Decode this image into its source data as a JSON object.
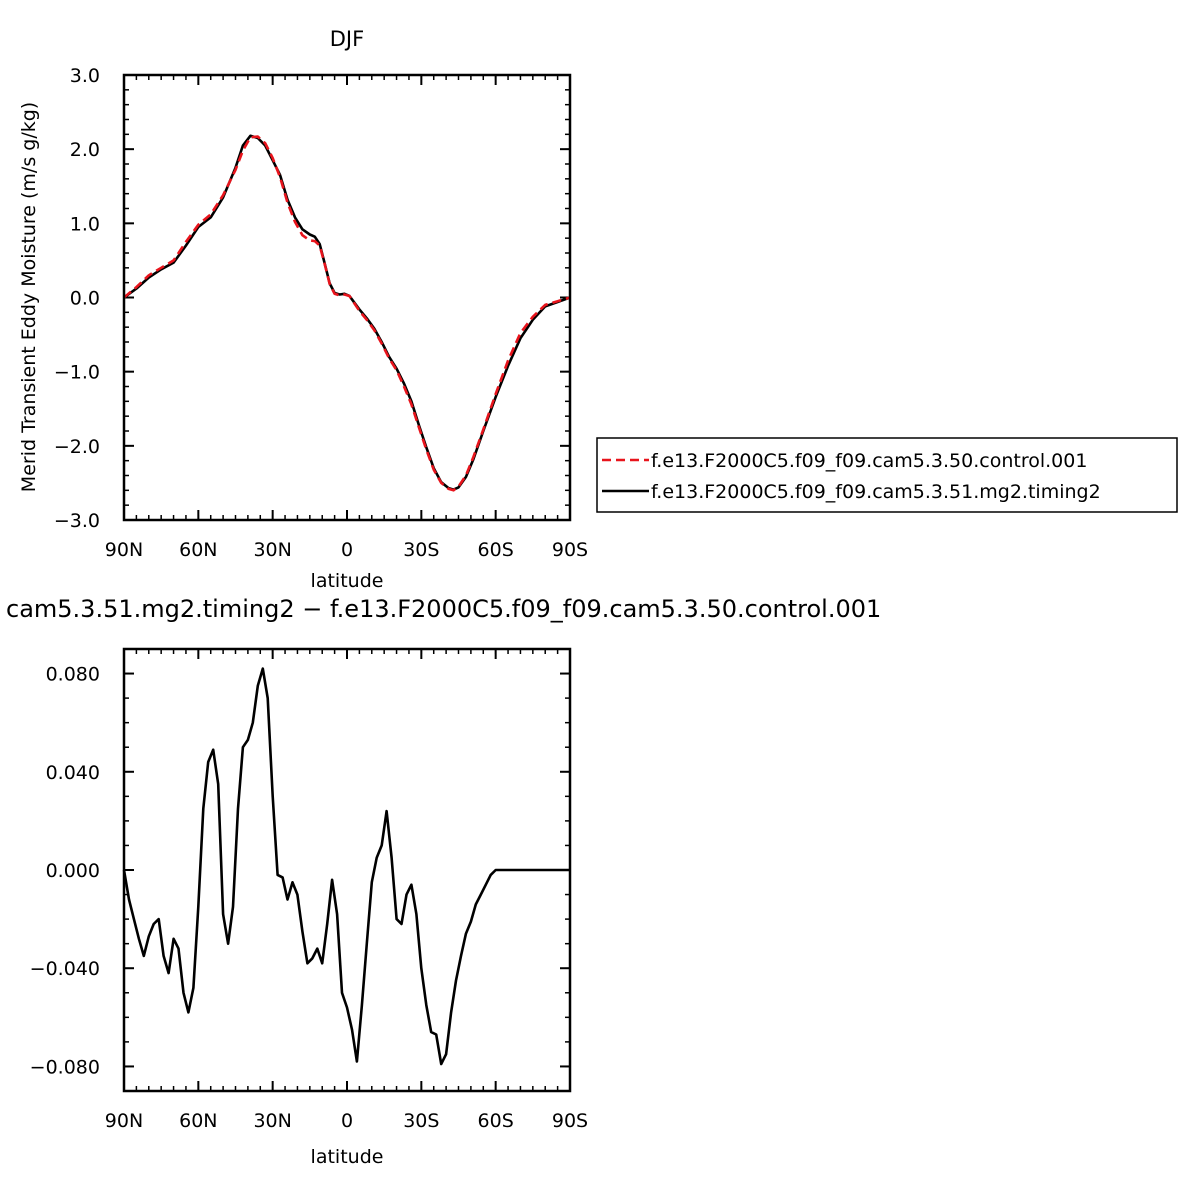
{
  "chart_data": [
    {
      "type": "line",
      "title": "DJF",
      "xlabel": "latitude",
      "ylabel": "Merid Transient Eddy Moisture (m/s g/kg)",
      "xlim": [
        90,
        -90
      ],
      "ylim": [
        -3.0,
        3.0
      ],
      "x_ticks": [
        90,
        60,
        30,
        0,
        -30,
        -60,
        -90
      ],
      "x_tick_labels": [
        "90N",
        "60N",
        "30N",
        "0",
        "30S",
        "60S",
        "90S"
      ],
      "y_ticks": [
        -3.0,
        -2.0,
        -1.0,
        0.0,
        1.0,
        2.0,
        3.0
      ],
      "y_tick_labels": [
        "−3.0",
        "−2.0",
        "−1.0",
        "0.0",
        "1.0",
        "2.0",
        "3.0"
      ],
      "legend_position": "right",
      "series": [
        {
          "name": "f.e13.F2000C5.f09_f09.cam5.3.50.control.001",
          "color": "#e8141c",
          "dash": "dashed",
          "x": [
            90,
            85,
            80,
            75,
            70,
            65,
            60,
            55,
            50,
            45,
            42,
            39,
            36,
            33,
            30,
            27,
            24,
            21,
            18,
            15,
            13,
            11,
            9,
            7,
            5,
            3,
            1,
            -1,
            -3,
            -5,
            -8,
            -11,
            -14,
            -17,
            -20,
            -23,
            -26,
            -29,
            -32,
            -35,
            -38,
            -41,
            -43,
            -45,
            -48,
            -51,
            -55,
            -60,
            -65,
            -70,
            -75,
            -80,
            -85,
            -90
          ],
          "y": [
            0.0,
            0.14,
            0.3,
            0.4,
            0.5,
            0.75,
            0.98,
            1.12,
            1.38,
            1.72,
            1.98,
            2.16,
            2.17,
            2.08,
            1.88,
            1.62,
            1.28,
            1.02,
            0.84,
            0.77,
            0.76,
            0.7,
            0.45,
            0.18,
            0.05,
            0.03,
            0.04,
            0.02,
            -0.08,
            -0.18,
            -0.3,
            -0.44,
            -0.62,
            -0.82,
            -0.98,
            -1.2,
            -1.44,
            -1.75,
            -2.05,
            -2.32,
            -2.5,
            -2.58,
            -2.6,
            -2.55,
            -2.4,
            -2.15,
            -1.78,
            -1.3,
            -0.85,
            -0.48,
            -0.26,
            -0.1,
            -0.05,
            0.0
          ]
        },
        {
          "name": "f.e13.F2000C5.f09_f09.cam5.3.51.mg2.timing2",
          "color": "#000000",
          "dash": "solid",
          "x": [
            90,
            85,
            80,
            75,
            70,
            65,
            60,
            55,
            50,
            45,
            42,
            39,
            36,
            33,
            30,
            27,
            24,
            21,
            18,
            15,
            13,
            11,
            9,
            7,
            5,
            3,
            1,
            -1,
            -3,
            -5,
            -8,
            -11,
            -14,
            -17,
            -20,
            -23,
            -26,
            -29,
            -32,
            -35,
            -38,
            -41,
            -43,
            -45,
            -48,
            -51,
            -55,
            -60,
            -65,
            -70,
            -75,
            -80,
            -85,
            -90
          ],
          "y": [
            0.0,
            0.12,
            0.27,
            0.38,
            0.47,
            0.7,
            0.95,
            1.08,
            1.35,
            1.75,
            2.05,
            2.18,
            2.15,
            2.05,
            1.85,
            1.65,
            1.32,
            1.08,
            0.92,
            0.85,
            0.82,
            0.72,
            0.46,
            0.19,
            0.06,
            0.04,
            0.05,
            0.02,
            -0.07,
            -0.16,
            -0.28,
            -0.42,
            -0.6,
            -0.8,
            -0.96,
            -1.16,
            -1.4,
            -1.72,
            -2.02,
            -2.3,
            -2.49,
            -2.57,
            -2.59,
            -2.56,
            -2.42,
            -2.18,
            -1.8,
            -1.34,
            -0.92,
            -0.55,
            -0.3,
            -0.12,
            -0.06,
            0.0
          ]
        }
      ]
    },
    {
      "type": "line",
      "title": "cam5.3.51.mg2.timing2 − f.e13.F2000C5.f09_f09.cam5.3.50.control.001",
      "xlabel": "latitude",
      "xlim": [
        90,
        -90
      ],
      "ylim": [
        -0.09,
        0.09
      ],
      "x_ticks": [
        90,
        60,
        30,
        0,
        -30,
        -60,
        -90
      ],
      "x_tick_labels": [
        "90N",
        "60N",
        "30N",
        "0",
        "30S",
        "60S",
        "90S"
      ],
      "y_ticks": [
        -0.08,
        -0.04,
        0.0,
        0.04,
        0.08
      ],
      "y_tick_labels": [
        "−0.080",
        "−0.040",
        "0.000",
        "0.040",
        "0.080"
      ],
      "series": [
        {
          "color": "#000000",
          "dash": "solid",
          "x": [
            90,
            88,
            86,
            84,
            82,
            80,
            78,
            76,
            74,
            72,
            70,
            68,
            66,
            64,
            62,
            60,
            58,
            56,
            54,
            52,
            50,
            48,
            46,
            44,
            42,
            40,
            38,
            36,
            34,
            32,
            30,
            28,
            26,
            24,
            22,
            20,
            18,
            16,
            14,
            12,
            10,
            8,
            6,
            4,
            2,
            0,
            -2,
            -4,
            -6,
            -8,
            -10,
            -12,
            -14,
            -16,
            -18,
            -20,
            -22,
            -24,
            -26,
            -28,
            -30,
            -32,
            -34,
            -36,
            -38,
            -40,
            -42,
            -44,
            -46,
            -48,
            -50,
            -52,
            -54,
            -56,
            -58,
            -60,
            -62,
            -64,
            -66,
            -68,
            -70,
            -72,
            -74,
            -76,
            -78,
            -80,
            -82,
            -84,
            -86,
            -88,
            -90
          ],
          "y": [
            0.0,
            -0.012,
            -0.02,
            -0.028,
            -0.035,
            -0.027,
            -0.022,
            -0.02,
            -0.035,
            -0.042,
            -0.028,
            -0.032,
            -0.05,
            -0.058,
            -0.048,
            -0.015,
            0.025,
            0.044,
            0.049,
            0.035,
            -0.018,
            -0.03,
            -0.015,
            0.025,
            0.05,
            0.053,
            0.06,
            0.075,
            0.082,
            0.07,
            0.03,
            -0.002,
            -0.003,
            -0.012,
            -0.005,
            -0.01,
            -0.025,
            -0.038,
            -0.036,
            -0.032,
            -0.038,
            -0.022,
            -0.004,
            -0.018,
            -0.05,
            -0.056,
            -0.065,
            -0.078,
            -0.055,
            -0.03,
            -0.005,
            0.005,
            0.01,
            0.024,
            0.005,
            -0.02,
            -0.022,
            -0.01,
            -0.006,
            -0.018,
            -0.04,
            -0.055,
            -0.066,
            -0.067,
            -0.079,
            -0.075,
            -0.058,
            -0.045,
            -0.035,
            -0.026,
            -0.021,
            -0.014,
            -0.01,
            -0.006,
            -0.002,
            0.0,
            0.0,
            0.0,
            0.0,
            0.0,
            0.0,
            0.0,
            0.0,
            0.0,
            0.0,
            0.0,
            0.0,
            0.0,
            0.0,
            0.0,
            0.0
          ]
        }
      ]
    }
  ]
}
